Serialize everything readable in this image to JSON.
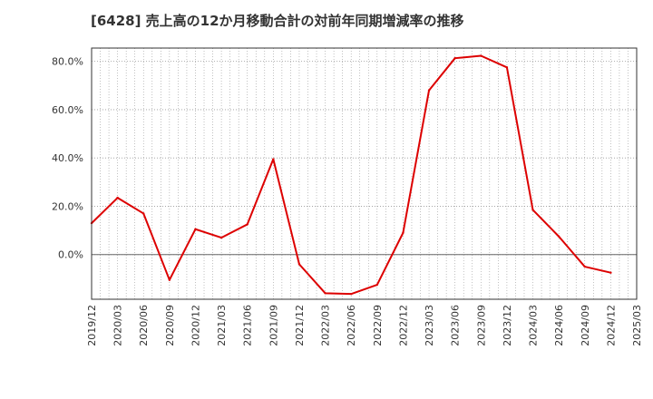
{
  "chart_data": {
    "type": "line",
    "title": "[6428]  売上高の12か月移動合計の対前年同期増減率の推移",
    "xlabel": "",
    "ylabel": "",
    "x_tick_labels": [
      "2019/12",
      "2020/03",
      "2020/06",
      "2020/09",
      "2020/12",
      "2021/03",
      "2021/06",
      "2021/09",
      "2021/12",
      "2022/03",
      "2022/06",
      "2022/09",
      "2022/12",
      "2023/03",
      "2023/06",
      "2023/09",
      "2023/12",
      "2024/03",
      "2024/06",
      "2024/09",
      "2024/12",
      "2025/03"
    ],
    "y_tick_values": [
      0,
      20,
      40,
      60,
      80
    ],
    "y_tick_labels": [
      "0.0%",
      "20.0%",
      "40.0%",
      "60.0%",
      "80.0%"
    ],
    "ylim": [
      -18.5,
      85.5
    ],
    "grid": true,
    "series": [
      {
        "name": "対前年同期増減率",
        "color": "#dd0000",
        "x": [
          "2019/12",
          "2020/03",
          "2020/06",
          "2020/09",
          "2020/12",
          "2021/03",
          "2021/06",
          "2021/09",
          "2021/12",
          "2022/03",
          "2022/06",
          "2022/09",
          "2022/12",
          "2023/03",
          "2023/06",
          "2023/09",
          "2023/12",
          "2024/03",
          "2024/06",
          "2024/09",
          "2024/12"
        ],
        "values": [
          13.0,
          23.5,
          17.0,
          -10.5,
          10.5,
          7.0,
          12.5,
          39.5,
          -4.0,
          -16.0,
          -16.3,
          -12.5,
          9.0,
          68.0,
          81.3,
          82.3,
          77.5,
          18.5,
          7.5,
          -5.0,
          -7.5
        ]
      }
    ]
  }
}
